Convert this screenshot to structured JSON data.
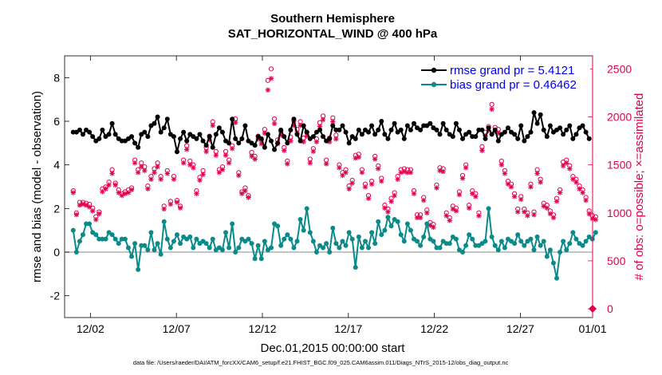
{
  "chart_data": {
    "type": "line",
    "title": "Southern Hemisphere",
    "subtitle": "SAT_HORIZONTAL_WIND @ 400 hPa",
    "xlabel": "Dec.01,2015 00:00:00 start",
    "ylabel": "rmse and bias (model - observation)",
    "ylabel_right": "# of obs: o=possible; ×=assimilated",
    "footnote": "data file: /Users/raeder/DAI/ATM_forcXX/CAM6_setup/f.e21.FHIST_BGC.f09_025.CAM6assim.011/Diags_NTrS_2015-12/obs_diag_output.nc",
    "xlim": [
      0.5,
      31.2
    ],
    "ylim": [
      -3,
      9
    ],
    "ylim_right": [
      -91,
      2636
    ],
    "xticks": [
      2,
      7,
      12,
      17,
      22,
      27,
      32
    ],
    "xtick_labels": [
      "12/02",
      "12/07",
      "12/12",
      "12/17",
      "12/22",
      "12/27",
      "01/01"
    ],
    "yticks": [
      -2,
      0,
      2,
      4,
      6,
      8
    ],
    "ytick_labels": [
      "-2",
      "0",
      "2",
      "4",
      "6",
      "8"
    ],
    "yticks_right": [
      0,
      500,
      1000,
      1500,
      2000,
      2500
    ],
    "ytick_labels_right": [
      "0",
      "500",
      "1000",
      "1500",
      "2000",
      "2500"
    ],
    "zero_line": 0,
    "legend_location": "top-right",
    "colors": {
      "rmse": "#000000",
      "bias": "#0b8a8a",
      "obs": "#e0004d",
      "zero": "#b0b0b0"
    },
    "series": [
      {
        "name": "rmse grand pr = 5.4121",
        "axis": "left",
        "marker": "filled-circle",
        "values": [
          5.5,
          5.5,
          5.6,
          5.4,
          5.6,
          5.5,
          5.3,
          5.1,
          5.2,
          5.6,
          5.3,
          5.4,
          5.9,
          5.4,
          5.2,
          5.1,
          5.1,
          5.2,
          5.3,
          5.0,
          4.8,
          5.4,
          5.5,
          5.3,
          5.8,
          5.9,
          6.2,
          5.5,
          5.7,
          6.1,
          5.4,
          5.3,
          4.6,
          5.2,
          5.5,
          5.1,
          5.4,
          5.3,
          5.2,
          5.4,
          5.1,
          4.9,
          5.3,
          4.8,
          5.4,
          5.7,
          5.5,
          5.1,
          5.0,
          6.1,
          5.2,
          5.0,
          5.2,
          5.8,
          5.1,
          5.0,
          4.9,
          5.3,
          5.2,
          4.8,
          5.4,
          5.1,
          4.7,
          5.0,
          5.6,
          5.3,
          5.0,
          5.6,
          6.1,
          5.4,
          5.1,
          5.8,
          5.5,
          5.2,
          5.3,
          5.5,
          5.6,
          5.3,
          5.1,
          5.2,
          5.8,
          5.6,
          5.6,
          5.8,
          5.5,
          5.0,
          5.3,
          5.2,
          5.6,
          5.4,
          5.6,
          5.5,
          5.8,
          5.4,
          5.6,
          6.0,
          5.4,
          5.2,
          5.6,
          5.9,
          5.5,
          5.6,
          5.2,
          5.8,
          5.6,
          5.9,
          5.7,
          5.6,
          5.8,
          5.8,
          5.9,
          5.7,
          5.6,
          5.4,
          5.9,
          5.6,
          5.4,
          5.3,
          5.9,
          5.6,
          5.2,
          5.4,
          5.5,
          5.3,
          5.3,
          5.6,
          5.6,
          5.2,
          5.7,
          5.4,
          5.6,
          5.1,
          5.4,
          5.5,
          5.7,
          5.5,
          5.4,
          5.2,
          5.8,
          5.1,
          5.3,
          5.5,
          6.4,
          5.9,
          6.3,
          5.6,
          5.3,
          5.8,
          5.5,
          5.6,
          5.7,
          5.4,
          5.6,
          5.8,
          5.2,
          5.4,
          5.7,
          5.8,
          5.5,
          5.2
        ]
      },
      {
        "name": "bias grand pr = 0.46462",
        "axis": "left",
        "marker": "filled-circle",
        "values": [
          1.0,
          0.0,
          0.5,
          0.8,
          1.3,
          1.3,
          0.9,
          0.8,
          0.6,
          0.6,
          0.6,
          0.9,
          0.8,
          0.6,
          0.4,
          0.6,
          0.6,
          0.2,
          -0.2,
          0.4,
          -0.8,
          0.3,
          0.3,
          0.1,
          0.9,
          0.1,
          0.4,
          -0.1,
          1.4,
          0.6,
          0.2,
          0.5,
          0.8,
          0.4,
          0.7,
          0.6,
          0.7,
          0.2,
          0.6,
          0.4,
          0.5,
          0.4,
          0.2,
          0.6,
          0.1,
          0.2,
          0.1,
          0.9,
          0.2,
          1.3,
          0.0,
          0.2,
          0.6,
          0.5,
          0.6,
          0.4,
          -0.3,
          0.3,
          -0.3,
          0.5,
          0.1,
          0.2,
          1.3,
          1.2,
          0.3,
          0.6,
          0.8,
          0.6,
          0.2,
          0.5,
          1.5,
          1.0,
          2.0,
          0.9,
          0.5,
          0.0,
          0.3,
          0.2,
          0.4,
          0.0,
          1.1,
          0.4,
          0.2,
          0.5,
          0.3,
          0.9,
          0.6,
          -0.7,
          0.7,
          0.2,
          0.5,
          0.2,
          0.9,
          0.4,
          1.4,
          0.8,
          1.0,
          1.6,
          1.2,
          1.5,
          1.4,
          0.8,
          0.5,
          1.3,
          1.0,
          0.6,
          0.5,
          0.3,
          0.7,
          1.3,
          0.6,
          0.5,
          0.2,
          0.2,
          0.5,
          0.4,
          0.4,
          0.7,
          0.6,
          0.1,
          0.0,
          0.3,
          0.8,
          0.6,
          0.3,
          0.3,
          0.4,
          0.5,
          2.0,
          0.7,
          0.3,
          0.1,
          0.5,
          0.2,
          0.6,
          0.5,
          0.4,
          0.8,
          0.5,
          0.3,
          0.5,
          0.6,
          0.1,
          0.7,
          0.3,
          0.5,
          -0.2,
          0.1,
          -0.5,
          -1.2,
          0.0,
          0.5,
          0.1,
          0.4,
          0.9,
          0.6,
          0.4,
          0.3,
          0.5,
          0.7,
          0.6,
          0.9
        ]
      },
      {
        "name": "obs possible",
        "axis": "right",
        "marker": "open-circle",
        "values": [
          1230,
          1000,
          1110,
          1110,
          1100,
          1090,
          1050,
          960,
          1010,
          1250,
          1270,
          1320,
          1450,
          1310,
          1240,
          1200,
          1220,
          1240,
          1260,
          1550,
          1450,
          1520,
          1480,
          1280,
          1380,
          1460,
          1520,
          1380,
          1070,
          1440,
          1120,
          1380,
          1130,
          1070,
          1550,
          1700,
          1540,
          1500,
          1230,
          1370,
          1440,
          1680,
          1800,
          1950,
          1640,
          1450,
          1480,
          1640,
          1550,
          1700,
          1980,
          1420,
          1220,
          1260,
          1180,
          1630,
          1590,
          1800,
          1760,
          1870,
          2380,
          2500,
          1980,
          1760,
          1850,
          1680,
          1540,
          1790,
          1960,
          1870,
          1950,
          1780,
          1840,
          1560,
          1670,
          1770,
          1940,
          2010,
          1550,
          1780,
          1990,
          1810,
          1500,
          1420,
          1450,
          1280,
          1340,
          1600,
          1610,
          1450,
          1300,
          1180,
          1330,
          1590,
          1490,
          1360,
          1080,
          1040,
          1150,
          1210,
          1380,
          1450,
          1460,
          1450,
          1450,
          1230,
          980,
          980,
          1160,
          1030,
          900,
          880,
          1290,
          1470,
          1460,
          1000,
          950,
          1070,
          1050,
          1220,
          1390,
          1500,
          1080,
          1230,
          1200,
          1000,
          1690,
          1840,
          1900,
          2130,
          1890,
          1870,
          1540,
          1440,
          1330,
          1300,
          1200,
          1040,
          1170,
          1040,
          1000,
          1300,
          1010,
          1450,
          1350,
          1100,
          1080,
          1020,
          980,
          1150,
          1240,
          1530,
          1550,
          1490,
          1380,
          1350,
          1280,
          1240,
          1160,
          1020,
          970,
          960
        ]
      },
      {
        "name": "obs assimilated",
        "axis": "right",
        "marker": "asterisk",
        "values": [
          1210,
          980,
          1080,
          1090,
          1080,
          1060,
          1020,
          930,
          990,
          1220,
          1250,
          1290,
          1410,
          1290,
          1210,
          1180,
          1200,
          1210,
          1240,
          1520,
          1420,
          1480,
          1440,
          1250,
          1350,
          1420,
          1480,
          1350,
          1040,
          1410,
          1090,
          1350,
          1110,
          1050,
          1520,
          1660,
          1500,
          1470,
          1200,
          1340,
          1400,
          1640,
          1760,
          1910,
          1600,
          1420,
          1450,
          1600,
          1520,
          1670,
          1940,
          1390,
          1200,
          1230,
          1160,
          1590,
          1560,
          1770,
          1720,
          1830,
          2280,
          2400,
          1930,
          1720,
          1810,
          1650,
          1510,
          1750,
          1910,
          1830,
          1910,
          1740,
          1800,
          1520,
          1640,
          1740,
          1900,
          1970,
          1510,
          1740,
          1950,
          1770,
          1470,
          1390,
          1420,
          1250,
          1310,
          1570,
          1580,
          1420,
          1270,
          1150,
          1300,
          1560,
          1460,
          1330,
          1050,
          1010,
          1120,
          1180,
          1350,
          1420,
          1430,
          1420,
          1420,
          1200,
          950,
          950,
          1130,
          1000,
          870,
          850,
          1260,
          1440,
          1430,
          970,
          920,
          1040,
          1020,
          1190,
          1360,
          1470,
          1050,
          1200,
          1170,
          970,
          1650,
          1800,
          1860,
          2080,
          1850,
          1830,
          1500,
          1410,
          1300,
          1270,
          1170,
          1010,
          1140,
          1010,
          970,
          1270,
          980,
          1410,
          1320,
          1070,
          1050,
          990,
          950,
          1120,
          1210,
          1490,
          1520,
          1460,
          1350,
          1320,
          1250,
          1210,
          1130,
          990,
          940,
          930
        ]
      }
    ]
  }
}
